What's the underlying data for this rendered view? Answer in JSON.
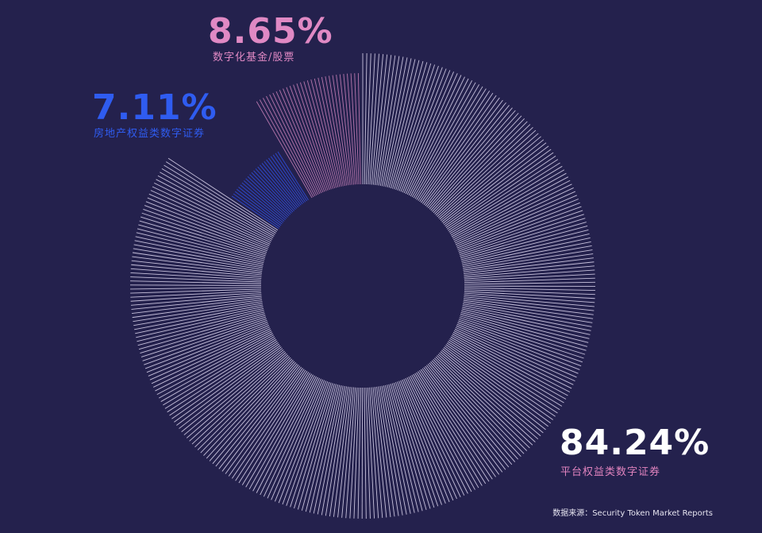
{
  "colors": {
    "background": "#24214d",
    "platform": "#d9d3ec",
    "real_estate": "#2f4fe0",
    "funds": "#c77fb7",
    "platform_label": "#ffffff",
    "platform_category_label": "#e083be",
    "real_estate_label": "#2f5cf0",
    "funds_label": "#e089c4"
  },
  "chart_data": {
    "type": "pie",
    "variant": "donut with radial line fill",
    "series": [
      {
        "category": "平台权益类数字证券",
        "value": 84.24,
        "label": "84.24%",
        "color": "#d9d3ec"
      },
      {
        "category": "房地产权益类数字证券",
        "value": 7.11,
        "label": "7.11%",
        "color": "#2f4fe0"
      },
      {
        "category": "数字化基金/股票",
        "value": 8.65,
        "label": "8.65%",
        "color": "#c77fb7"
      }
    ]
  },
  "source_note": "数据来源：Security Token Market Reports"
}
